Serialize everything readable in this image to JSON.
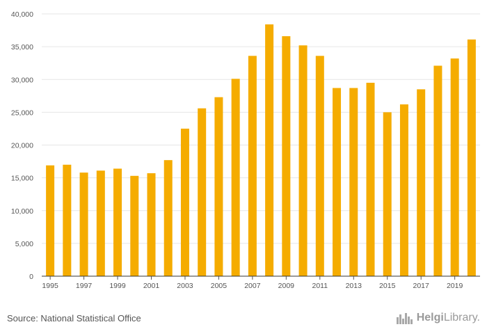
{
  "chart_data": {
    "type": "bar",
    "title": "",
    "xlabel": "",
    "ylabel": "",
    "ylim": [
      0,
      40000
    ],
    "yticks": [
      0,
      5000,
      10000,
      15000,
      20000,
      25000,
      30000,
      35000,
      40000
    ],
    "ytick_labels": [
      "0",
      "5,000",
      "10,000",
      "15,000",
      "20,000",
      "25,000",
      "30,000",
      "35,000",
      "40,000"
    ],
    "categories": [
      "1995",
      "1996",
      "1997",
      "1998",
      "1999",
      "2000",
      "2001",
      "2002",
      "2003",
      "2004",
      "2005",
      "2006",
      "2007",
      "2008",
      "2009",
      "2010",
      "2011",
      "2012",
      "2013",
      "2014",
      "2015",
      "2016",
      "2017",
      "2018",
      "2019",
      "2020"
    ],
    "xtick_labels": [
      "1995",
      "1997",
      "1999",
      "2001",
      "2003",
      "2005",
      "2007",
      "2009",
      "2011",
      "2013",
      "2015",
      "2017",
      "2019"
    ],
    "values": [
      16900,
      17000,
      15800,
      16100,
      16400,
      15300,
      15700,
      17700,
      22500,
      25600,
      27300,
      30100,
      33600,
      38400,
      36600,
      35200,
      33600,
      28700,
      28700,
      29500,
      25000,
      26200,
      28500,
      32100,
      33200,
      36100
    ],
    "bar_color": "#f5ac00",
    "grid": true
  },
  "footer": {
    "source": "Source: National Statistical Office",
    "logo_bold": "Helgi",
    "logo_rest": "Library."
  }
}
